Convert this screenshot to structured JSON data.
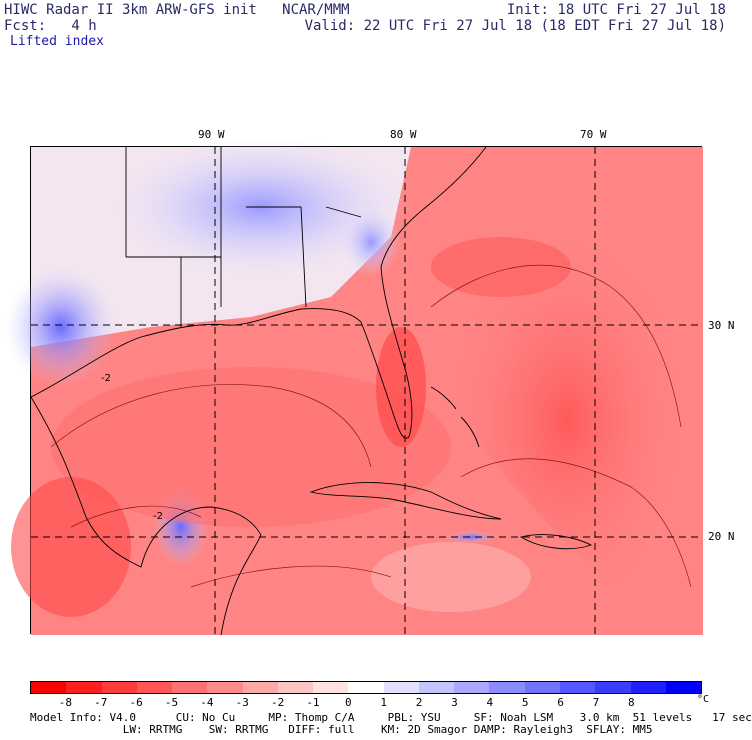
{
  "header": {
    "line1_left": "HIWC Radar II 3km ARW-GFS init   NCAR/MMM",
    "line1_right": "Init: 18 UTC Fri 27 Jul 18",
    "line2_left": "Fcst:   4 h",
    "line2_right": "Valid: 22 UTC Fri 27 Jul 18 (18 EDT Fri 27 Jul 18)",
    "field": "Lifted index"
  },
  "map": {
    "lon_labels": [
      "90 W",
      "80 W",
      "70 W"
    ],
    "lat_labels": [
      "30 N",
      "20 N"
    ],
    "contour_labels": [
      "-2",
      "-2"
    ]
  },
  "colorbar": {
    "ticks": [
      "-8",
      "-7",
      "-6",
      "-5",
      "-4",
      "-3",
      "-2",
      "-1",
      "0",
      "1",
      "2",
      "3",
      "4",
      "5",
      "6",
      "7",
      "8"
    ],
    "unit": "°C",
    "colors": [
      "#ff0000",
      "#ff1f1f",
      "#ff3c3c",
      "#ff5757",
      "#ff7272",
      "#ff8c8c",
      "#ffa8a8",
      "#ffc4c4",
      "#ffe2e2",
      "#ffffff",
      "#e2e2ff",
      "#c4c4ff",
      "#a8a8ff",
      "#8c8cff",
      "#7272ff",
      "#5757ff",
      "#3c3cff",
      "#1f1fff",
      "#0000ff"
    ]
  },
  "footer": {
    "line1": "Model Info: V4.0      CU: No Cu     MP: Thomp C/A     PBL: YSU     SF: Noah LSM    3.0 km  51 levels   17 sec",
    "line2": "              LW: RRTMG    SW: RRTMG   DIFF: full    KM: 2D Smagor DAMP: Rayleigh3  SFLAY: MM5"
  }
}
